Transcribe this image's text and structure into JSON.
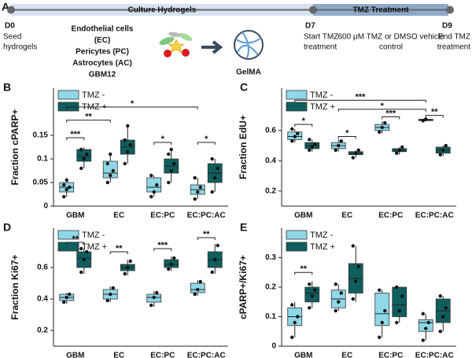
{
  "timeline": {
    "panel": "A",
    "phases": [
      "Culture Hydrogels",
      "TMZ Treatment"
    ],
    "days": [
      {
        "day": "D0",
        "label": [
          "Seed",
          "hydrogels"
        ]
      },
      {
        "day": "D7",
        "label": [
          "Start TMZ",
          "treatment"
        ]
      },
      {
        "day": "D9",
        "label": [
          "End TMZ",
          "treatment"
        ]
      }
    ],
    "treatment": [
      "600 μM TMZ or DMSO vehicle",
      "control"
    ],
    "cells": [
      {
        "text": "Endothelial cells",
        "color": "#2db34a"
      },
      {
        "text": "(EC)",
        "color": "#2db34a"
      },
      {
        "text": "Pericytes (PC)",
        "color": "#333333"
      },
      {
        "text": "Astrocytes (AC)",
        "color": "#f0b323"
      },
      {
        "text": "GBM12",
        "color": "#e02020"
      }
    ],
    "hydrogel": {
      "text": "GelMA",
      "color": "#5b9bd5"
    }
  },
  "chart_data": [
    {
      "type": "box",
      "panel": "B",
      "ylabel": "Fraction cPARP+",
      "legend": "top-left",
      "categories": [
        "GBM",
        "EC",
        "EC:PC",
        "EC:PC:AC"
      ],
      "ylim": [
        0,
        0.25
      ],
      "yticks": [
        0,
        0.05,
        0.1,
        0.15
      ],
      "significance": [
        "*",
        "**",
        "***",
        "*",
        "*"
      ],
      "series": [
        {
          "name": "TMZ -",
          "color": "#8fd8e8",
          "boxes": [
            {
              "min": 0.02,
              "q1": 0.03,
              "median": 0.04,
              "q3": 0.05,
              "max": 0.06,
              "points": [
                0.02,
                0.035,
                0.04,
                0.045,
                0.055
              ]
            },
            {
              "min": 0.05,
              "q1": 0.06,
              "median": 0.07,
              "q3": 0.095,
              "max": 0.11,
              "points": [
                0.05,
                0.065,
                0.075,
                0.09,
                0.11
              ]
            },
            {
              "min": 0.02,
              "q1": 0.03,
              "median": 0.04,
              "q3": 0.06,
              "max": 0.065,
              "points": [
                0.02,
                0.03,
                0.045,
                0.065
              ]
            },
            {
              "min": 0.015,
              "q1": 0.025,
              "median": 0.035,
              "q3": 0.045,
              "max": 0.06,
              "points": [
                0.015,
                0.03,
                0.04,
                0.06
              ]
            }
          ]
        },
        {
          "name": "TMZ +",
          "color": "#0f5e5e",
          "boxes": [
            {
              "min": 0.08,
              "q1": 0.095,
              "median": 0.105,
              "q3": 0.12,
              "max": 0.125,
              "points": [
                0.08,
                0.1,
                0.11,
                0.12
              ]
            },
            {
              "min": 0.09,
              "q1": 0.11,
              "median": 0.125,
              "q3": 0.14,
              "max": 0.17,
              "points": [
                0.09,
                0.115,
                0.13,
                0.14,
                0.17
              ]
            },
            {
              "min": 0.05,
              "q1": 0.07,
              "median": 0.085,
              "q3": 0.1,
              "max": 0.12,
              "points": [
                0.05,
                0.075,
                0.09,
                0.11,
                0.12
              ]
            },
            {
              "min": 0.03,
              "q1": 0.05,
              "median": 0.07,
              "q3": 0.09,
              "max": 0.1,
              "points": [
                0.03,
                0.06,
                0.08,
                0.1
              ]
            }
          ]
        }
      ]
    },
    {
      "type": "box",
      "panel": "C",
      "ylabel": "Fraction EdU+",
      "legend": "top-left",
      "categories": [
        "GBM",
        "EC",
        "EC:PC",
        "EC:PC:AC"
      ],
      "ylim": [
        0.1,
        0.88
      ],
      "yticks": [
        0.2,
        0.4,
        0.6
      ],
      "significance": [
        "***",
        "*",
        "*",
        "*",
        "***",
        "**"
      ],
      "series": [
        {
          "name": "TMZ -",
          "color": "#8fd8e8",
          "boxes": [
            {
              "min": 0.52,
              "q1": 0.54,
              "median": 0.56,
              "q3": 0.59,
              "max": 0.61,
              "points": [
                0.53,
                0.56,
                0.58,
                0.61
              ]
            },
            {
              "min": 0.46,
              "q1": 0.48,
              "median": 0.5,
              "q3": 0.52,
              "max": 0.54,
              "points": [
                0.47,
                0.5,
                0.53
              ]
            },
            {
              "min": 0.58,
              "q1": 0.6,
              "median": 0.62,
              "q3": 0.64,
              "max": 0.66,
              "points": [
                0.59,
                0.62,
                0.65
              ]
            },
            {
              "min": 0.66,
              "q1": 0.665,
              "median": 0.67,
              "q3": 0.675,
              "max": 0.68,
              "points": [
                0.665,
                0.675
              ]
            }
          ]
        },
        {
          "name": "TMZ +",
          "color": "#0f5e5e",
          "boxes": [
            {
              "min": 0.46,
              "q1": 0.48,
              "median": 0.5,
              "q3": 0.52,
              "max": 0.54,
              "points": [
                0.47,
                0.49,
                0.51,
                0.54
              ]
            },
            {
              "min": 0.42,
              "q1": 0.44,
              "median": 0.45,
              "q3": 0.46,
              "max": 0.47,
              "points": [
                0.42,
                0.45,
                0.47
              ]
            },
            {
              "min": 0.44,
              "q1": 0.46,
              "median": 0.47,
              "q3": 0.48,
              "max": 0.49,
              "points": [
                0.45,
                0.47,
                0.49
              ]
            },
            {
              "min": 0.43,
              "q1": 0.45,
              "median": 0.47,
              "q3": 0.49,
              "max": 0.5,
              "points": [
                0.44,
                0.47,
                0.5
              ]
            }
          ]
        }
      ]
    },
    {
      "type": "box",
      "panel": "D",
      "ylabel": "Fraction Ki67+",
      "legend": "top-left",
      "categories": [
        "GBM",
        "EC",
        "EC:PC",
        "EC:PC:AC"
      ],
      "ylim": [
        0.1,
        0.85
      ],
      "yticks": [
        0.2,
        0.4,
        0.6
      ],
      "significance": [
        "**",
        "**",
        "***",
        "**"
      ],
      "series": [
        {
          "name": "TMZ -",
          "color": "#8fd8e8",
          "boxes": [
            {
              "min": 0.37,
              "q1": 0.39,
              "median": 0.41,
              "q3": 0.43,
              "max": 0.44,
              "points": [
                0.38,
                0.41,
                0.43
              ]
            },
            {
              "min": 0.38,
              "q1": 0.4,
              "median": 0.43,
              "q3": 0.46,
              "max": 0.48,
              "points": [
                0.39,
                0.43,
                0.47
              ]
            },
            {
              "min": 0.35,
              "q1": 0.38,
              "median": 0.41,
              "q3": 0.43,
              "max": 0.45,
              "points": [
                0.36,
                0.41,
                0.44
              ]
            },
            {
              "min": 0.42,
              "q1": 0.44,
              "median": 0.46,
              "q3": 0.5,
              "max": 0.52,
              "points": [
                0.43,
                0.46,
                0.51
              ]
            }
          ]
        },
        {
          "name": "TMZ +",
          "color": "#0f5e5e",
          "boxes": [
            {
              "min": 0.56,
              "q1": 0.6,
              "median": 0.66,
              "q3": 0.7,
              "max": 0.72,
              "points": [
                0.57,
                0.65,
                0.7,
                0.72
              ]
            },
            {
              "min": 0.55,
              "q1": 0.58,
              "median": 0.6,
              "q3": 0.62,
              "max": 0.65,
              "points": [
                0.56,
                0.6,
                0.64
              ]
            },
            {
              "min": 0.58,
              "q1": 0.6,
              "median": 0.62,
              "q3": 0.65,
              "max": 0.67,
              "points": [
                0.59,
                0.62,
                0.66
              ]
            },
            {
              "min": 0.56,
              "q1": 0.6,
              "median": 0.65,
              "q3": 0.7,
              "max": 0.75,
              "points": [
                0.57,
                0.65,
                0.74
              ]
            }
          ]
        }
      ]
    },
    {
      "type": "box",
      "panel": "E",
      "ylabel": "cPARP+/Ki67+",
      "legend": "top-left",
      "categories": [
        "GBM",
        "EC",
        "EC:PC",
        "EC:PC:AC"
      ],
      "ylim": [
        0,
        0.4
      ],
      "yticks": [
        0,
        0.1,
        0.2,
        0.3
      ],
      "significance": [
        "**"
      ],
      "series": [
        {
          "name": "TMZ -",
          "color": "#8fd8e8",
          "boxes": [
            {
              "min": 0.03,
              "q1": 0.07,
              "median": 0.1,
              "q3": 0.13,
              "max": 0.15,
              "points": [
                0.03,
                0.08,
                0.1,
                0.14
              ]
            },
            {
              "min": 0.12,
              "q1": 0.13,
              "median": 0.16,
              "q3": 0.19,
              "max": 0.21,
              "points": [
                0.12,
                0.15,
                0.18,
                0.21
              ]
            },
            {
              "min": 0.03,
              "q1": 0.07,
              "median": 0.11,
              "q3": 0.18,
              "max": 0.19,
              "points": [
                0.03,
                0.08,
                0.12,
                0.19
              ]
            },
            {
              "min": 0.02,
              "q1": 0.05,
              "median": 0.08,
              "q3": 0.09,
              "max": 0.11,
              "points": [
                0.02,
                0.06,
                0.08,
                0.11
              ]
            }
          ]
        },
        {
          "name": "TMZ +",
          "color": "#0f5e5e",
          "boxes": [
            {
              "min": 0.13,
              "q1": 0.15,
              "median": 0.18,
              "q3": 0.2,
              "max": 0.22,
              "points": [
                0.13,
                0.17,
                0.19,
                0.21
              ]
            },
            {
              "min": 0.15,
              "q1": 0.18,
              "median": 0.23,
              "q3": 0.28,
              "max": 0.34,
              "points": [
                0.16,
                0.22,
                0.27,
                0.34
              ]
            },
            {
              "min": 0.08,
              "q1": 0.1,
              "median": 0.14,
              "q3": 0.2,
              "max": 0.2,
              "points": [
                0.08,
                0.12,
                0.17,
                0.2
              ]
            },
            {
              "min": 0.05,
              "q1": 0.08,
              "median": 0.12,
              "q3": 0.16,
              "max": 0.17,
              "points": [
                0.05,
                0.1,
                0.13,
                0.17
              ]
            }
          ]
        }
      ]
    }
  ]
}
